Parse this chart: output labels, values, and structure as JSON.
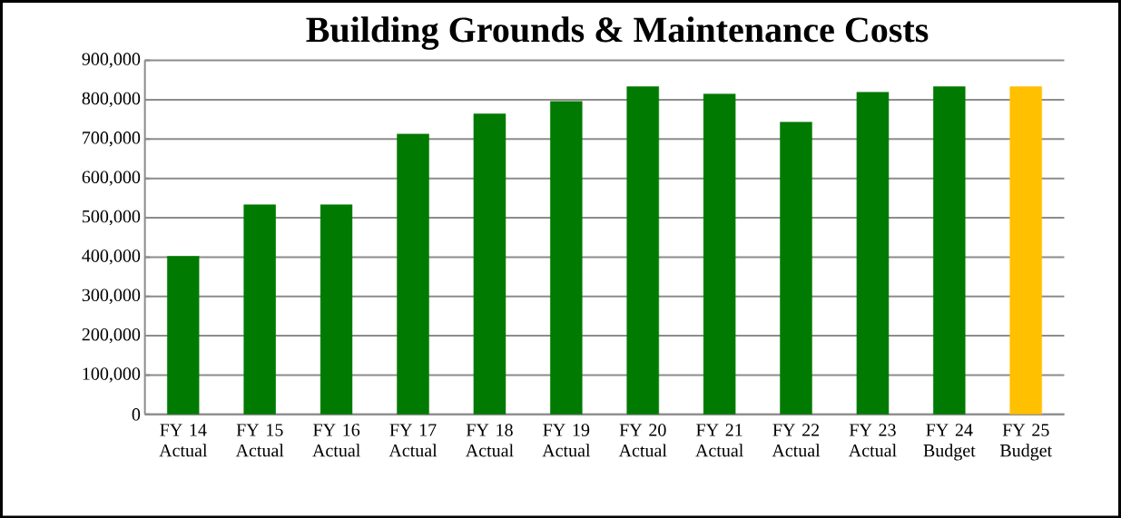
{
  "chart_data": {
    "type": "bar",
    "title": "Building Grounds & Maintenance Costs",
    "categories": [
      "FY 14 Actual",
      "FY 15 Actual",
      "FY 16 Actual",
      "FY 17 Actual",
      "FY 18 Actual",
      "FY 19 Actual",
      "FY 20 Actual",
      "FY 21 Actual",
      "FY 22 Actual",
      "FY 23 Actual",
      "FY 24 Budget",
      "FY 25 Budget"
    ],
    "values": [
      402000,
      533000,
      533000,
      713000,
      764000,
      796000,
      833000,
      815000,
      743000,
      819000,
      833000,
      833000
    ],
    "colors": [
      "#007a00",
      "#007a00",
      "#007a00",
      "#007a00",
      "#007a00",
      "#007a00",
      "#007a00",
      "#007a00",
      "#007a00",
      "#007a00",
      "#007a00",
      "#ffc000"
    ],
    "ylim": [
      0,
      900000
    ],
    "yticks": [
      0,
      {
        "value": 100000,
        "label": "100,000"
      },
      {
        "value": 200000,
        "label": "200,000"
      },
      {
        "value": 300000,
        "label": "300,000"
      },
      {
        "value": 400000,
        "label": "400,000"
      },
      {
        "value": 500000,
        "label": "500,000"
      },
      {
        "value": 600000,
        "label": "600,000"
      },
      {
        "value": 700000,
        "label": "700,000"
      },
      {
        "value": 800000,
        "label": "800,000"
      },
      {
        "value": 900000,
        "label": "900,000"
      }
    ],
    "grid": "y"
  }
}
